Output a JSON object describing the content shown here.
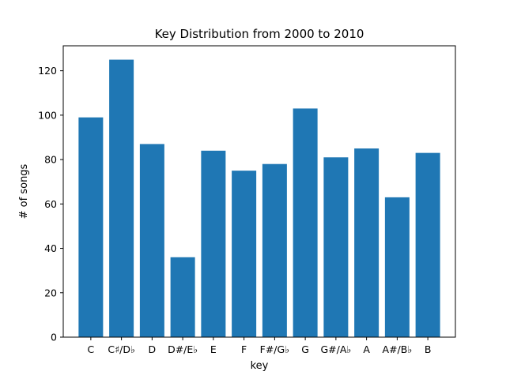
{
  "chart_data": {
    "type": "bar",
    "title": "Key Distribution from 2000 to 2010",
    "xlabel": "key",
    "ylabel": "# of songs",
    "categories": [
      "C",
      "C♯/D♭",
      "D",
      "D#/E♭",
      "E",
      "F",
      "F#/G♭",
      "G",
      "G#/A♭",
      "A",
      "A#/B♭",
      "B"
    ],
    "values": [
      99,
      125,
      87,
      36,
      84,
      75,
      78,
      103,
      81,
      85,
      63,
      83
    ],
    "ylim": [
      0,
      131.25
    ],
    "yticks": [
      0,
      20,
      40,
      60,
      80,
      100,
      120
    ],
    "bar_color": "#1f77b4",
    "grid": false,
    "legend": "none"
  }
}
